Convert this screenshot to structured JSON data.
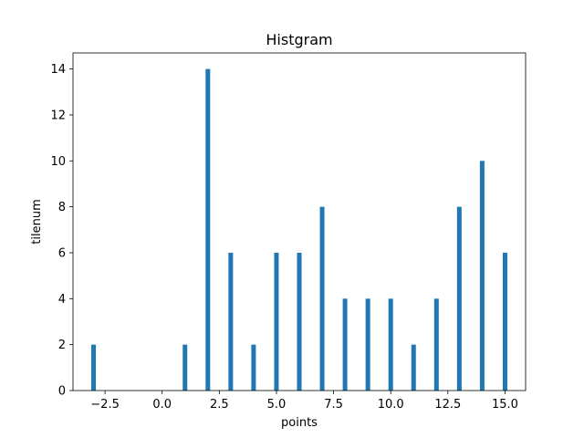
{
  "chart_data": {
    "type": "bar",
    "title": "Histgram",
    "xlabel": "points",
    "ylabel": "tilenum",
    "xlim": [
      -3.9,
      15.9
    ],
    "ylim": [
      0,
      14.7
    ],
    "xticks": [
      -2.5,
      0.0,
      2.5,
      5.0,
      7.5,
      10.0,
      12.5,
      15.0
    ],
    "xtick_labels": [
      "−2.5",
      "0.0",
      "2.5",
      "5.0",
      "7.5",
      "10.0",
      "12.5",
      "15.0"
    ],
    "yticks": [
      0,
      2,
      4,
      6,
      8,
      10,
      12,
      14
    ],
    "ytick_labels": [
      "0",
      "2",
      "4",
      "6",
      "8",
      "10",
      "12",
      "14"
    ],
    "bar_width": 0.2,
    "grid": false,
    "series": [
      {
        "name": "tilenum",
        "color": "#1f77b4",
        "x": [
          -3,
          1,
          2,
          3,
          4,
          5,
          6,
          7,
          8,
          9,
          10,
          11,
          12,
          13,
          14,
          15
        ],
        "values": [
          2,
          2,
          14,
          6,
          2,
          6,
          6,
          8,
          4,
          4,
          4,
          2,
          4,
          8,
          10,
          6
        ]
      }
    ]
  }
}
